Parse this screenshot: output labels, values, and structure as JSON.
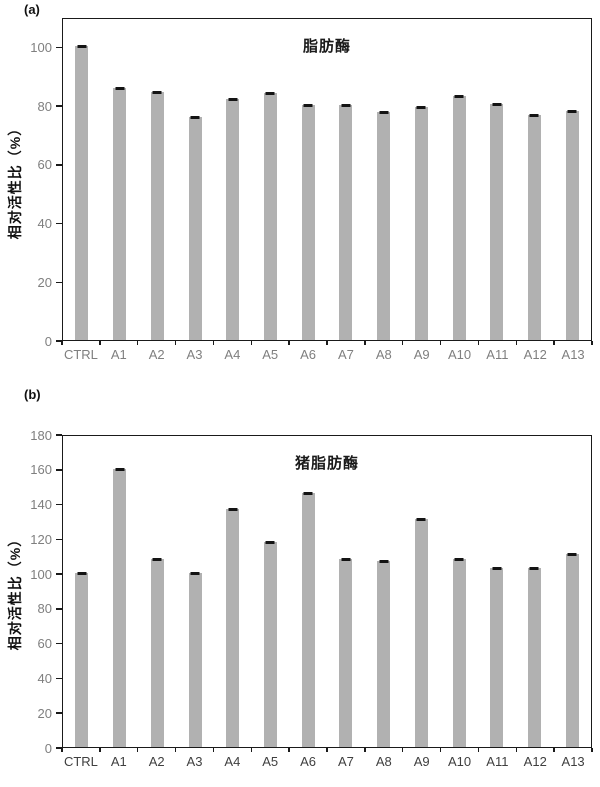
{
  "figure": {
    "background": "#ffffff",
    "panel_count": 2
  },
  "colors": {
    "bar_fill": "#b1b1b1",
    "error_cap": "#141414",
    "axis": "#1a1a1a",
    "y_tick_label": "#7f7f7f",
    "panel_a_x_label": "#7f7f7f",
    "panel_b_x_label": "#3f3f3f",
    "title_text": "#1a1a1a"
  },
  "chart_data": [
    {
      "type": "bar",
      "panel_label": "(a)",
      "title": "脂肪酶",
      "ylabel": "相对活性比（%）",
      "xlabel": "",
      "categories": [
        "CTRL",
        "A1",
        "A2",
        "A3",
        "A4",
        "A5",
        "A6",
        "A7",
        "A8",
        "A9",
        "A10",
        "A11",
        "A12",
        "A13"
      ],
      "values": [
        100,
        86,
        84.5,
        76,
        82,
        84,
        80,
        80,
        77.5,
        79.5,
        83,
        80.5,
        76.5,
        78
      ],
      "yticks": [
        0,
        20,
        40,
        60,
        80,
        100
      ],
      "ylim": [
        0,
        110
      ],
      "grid": false,
      "legend": false,
      "error_bars": "small black cap on top of every bar",
      "x_label_color": "#7f7f7f"
    },
    {
      "type": "bar",
      "panel_label": "(b)",
      "title": "猪脂肪酶",
      "ylabel": "相对活性比（%）",
      "xlabel": "",
      "categories": [
        "CTRL",
        "A1",
        "A2",
        "A3",
        "A4",
        "A5",
        "A6",
        "A7",
        "A8",
        "A9",
        "A10",
        "A11",
        "A12",
        "A13"
      ],
      "values": [
        100,
        160,
        108,
        100,
        137,
        118,
        146,
        108,
        107,
        131,
        108,
        103,
        103,
        111
      ],
      "yticks": [
        0,
        20,
        40,
        60,
        80,
        100,
        120,
        140,
        160,
        180
      ],
      "ylim": [
        0,
        180
      ],
      "grid": false,
      "legend": false,
      "error_bars": "small black cap on top of every bar",
      "x_label_color": "#3f3f3f"
    }
  ]
}
